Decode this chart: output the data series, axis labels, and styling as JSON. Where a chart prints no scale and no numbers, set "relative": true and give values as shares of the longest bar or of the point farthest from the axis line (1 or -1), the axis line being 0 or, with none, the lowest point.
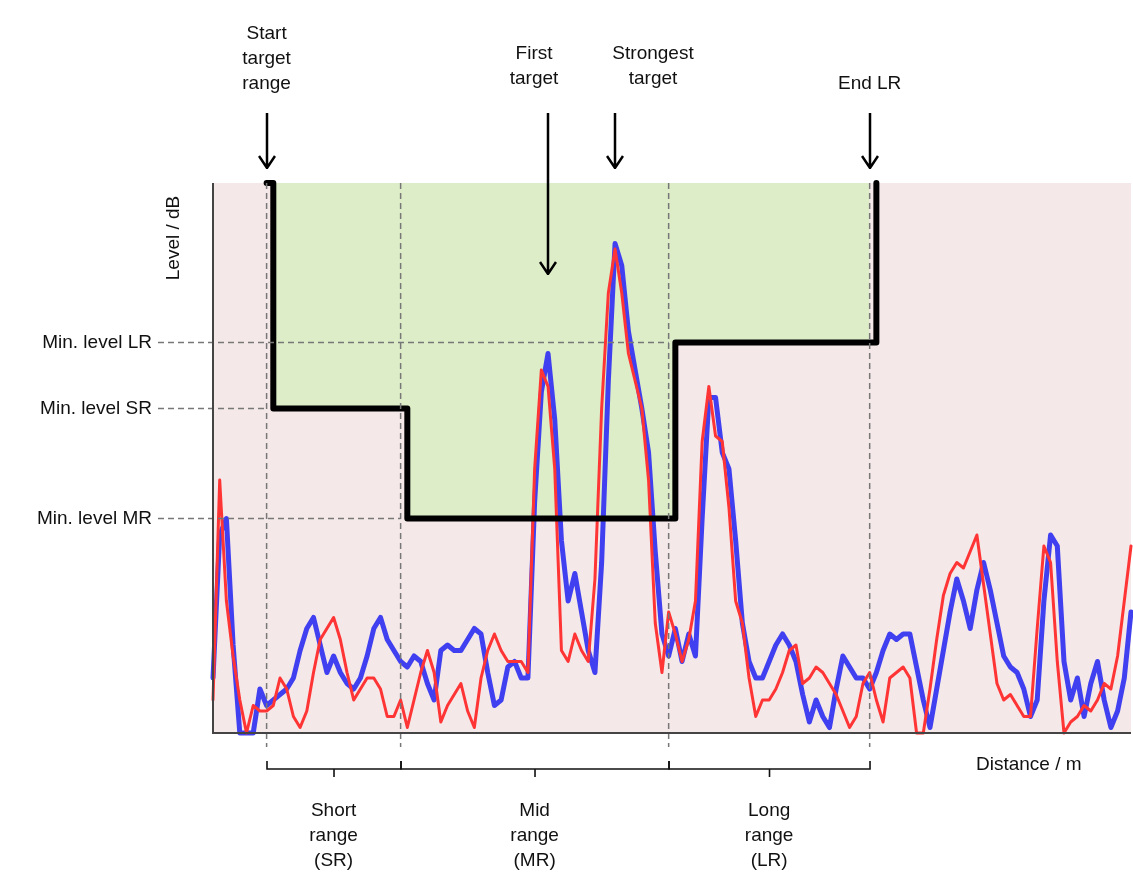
{
  "chart_data": {
    "type": "line",
    "relative": true,
    "xlabel": "Distance / m",
    "ylabel": "Level / dB",
    "categories": [
      null,
      null,
      null,
      null,
      null,
      null,
      null,
      null,
      null,
      null,
      null,
      null,
      null,
      null,
      null,
      null,
      null,
      null,
      null,
      null,
      null,
      null,
      null,
      null,
      null,
      null,
      null,
      null,
      null,
      null,
      null,
      null,
      null,
      null,
      null,
      null,
      null,
      null,
      null,
      null,
      null,
      null,
      null,
      null,
      null,
      null,
      null,
      null,
      null,
      null,
      null,
      null,
      null,
      null,
      null,
      null,
      null,
      null,
      null,
      null,
      null,
      null,
      null,
      null,
      null,
      null,
      null,
      null,
      null,
      null,
      null,
      null,
      null,
      null,
      null,
      null,
      null,
      null,
      null,
      null,
      null,
      null,
      null,
      null,
      null,
      null,
      null,
      null,
      null,
      null,
      null,
      null,
      null,
      null,
      null,
      null,
      null,
      null,
      null,
      null,
      null,
      null,
      null,
      null,
      null,
      null,
      null,
      null,
      null,
      null,
      null,
      null,
      null,
      null,
      null,
      null,
      null,
      null,
      null,
      null,
      null,
      null,
      null,
      null,
      null,
      null,
      null,
      null,
      null,
      null,
      null,
      null,
      null,
      null,
      null,
      null,
      null,
      null
    ],
    "series": [
      {
        "color": "#4040f0",
        "values": [
          0.1,
          0.36,
          0.39,
          0.16,
          0,
          0,
          0,
          0.08,
          0.05,
          0.06,
          0.07,
          0.08,
          0.1,
          0.15,
          0.19,
          0.21,
          0.16,
          0.11,
          0.14,
          0.11,
          0.09,
          0.08,
          0.1,
          0.14,
          0.19,
          0.21,
          0.17,
          0.15,
          0.13,
          0.12,
          0.14,
          0.13,
          0.09,
          0.06,
          0.15,
          0.16,
          0.15,
          0.15,
          0.17,
          0.19,
          0.18,
          0.11,
          0.05,
          0.06,
          0.12,
          0.13,
          0.1,
          0.1,
          0.42,
          0.62,
          0.69,
          0.57,
          0.35,
          0.24,
          0.29,
          0.22,
          0.15,
          0.11,
          0.31,
          0.64,
          0.89,
          0.85,
          0.73,
          0.66,
          0.59,
          0.51,
          0.33,
          0.18,
          0.14,
          0.19,
          0.13,
          0.18,
          0.14,
          0.39,
          0.61,
          0.61,
          0.51,
          0.48,
          0.35,
          0.2,
          0.13,
          0.1,
          0.1,
          0.13,
          0.16,
          0.18,
          0.16,
          0.13,
          0.07,
          0.02,
          0.06,
          0.03,
          0.01,
          0.08,
          0.14,
          0.12,
          0.1,
          0.1,
          0.08,
          0.11,
          0.15,
          0.18,
          0.17,
          0.18,
          0.18,
          0.12,
          0.06,
          0.01,
          0.08,
          0.15,
          0.22,
          0.28,
          0.24,
          0.19,
          0.26,
          0.31,
          0.26,
          0.2,
          0.14,
          0.12,
          0.11,
          0.08,
          0.03,
          0.06,
          0.24,
          0.36,
          0.34,
          0.13,
          0.06,
          0.1,
          0.03,
          0.09,
          0.13,
          0.06,
          0.01,
          0.04,
          0.1,
          0.22
        ]
      },
      {
        "color": "#ff3535",
        "values": [
          0.06,
          0.46,
          0.24,
          0.14,
          0.06,
          0,
          0.05,
          0.04,
          0.04,
          0.05,
          0.1,
          0.08,
          0.03,
          0.01,
          0.04,
          0.11,
          0.17,
          0.19,
          0.21,
          0.17,
          0.11,
          0.06,
          0.08,
          0.1,
          0.1,
          0.08,
          0.03,
          0.03,
          0.06,
          0.01,
          0.06,
          0.11,
          0.15,
          0.11,
          0.02,
          0.05,
          0.07,
          0.09,
          0.04,
          0.01,
          0.1,
          0.15,
          0.18,
          0.15,
          0.13,
          0.13,
          0.13,
          0.11,
          0.48,
          0.66,
          0.63,
          0.48,
          0.15,
          0.13,
          0.18,
          0.15,
          0.13,
          0.28,
          0.59,
          0.8,
          0.88,
          0.8,
          0.69,
          0.64,
          0.59,
          0.46,
          0.2,
          0.11,
          0.22,
          0.18,
          0.13,
          0.17,
          0.24,
          0.53,
          0.63,
          0.54,
          0.53,
          0.41,
          0.24,
          0.2,
          0.1,
          0.03,
          0.06,
          0.06,
          0.08,
          0.11,
          0.15,
          0.16,
          0.09,
          0.1,
          0.12,
          0.11,
          0.09,
          0.07,
          0.04,
          0.01,
          0.03,
          0.09,
          0.11,
          0.06,
          0.02,
          0.1,
          0.11,
          0.12,
          0.1,
          0,
          0,
          0.08,
          0.17,
          0.25,
          0.29,
          0.31,
          0.3,
          0.33,
          0.36,
          0.27,
          0.18,
          0.09,
          0.06,
          0.07,
          0.05,
          0.03,
          0.03,
          0.19,
          0.34,
          0.31,
          0.13,
          0,
          0.02,
          0.03,
          0.05,
          0.04,
          0.06,
          0.09,
          0.08,
          0.14,
          0.24,
          0.34
        ]
      },
      {
        "type": "step",
        "color": "#000000",
        "values": [
          null,
          null,
          null,
          null,
          null,
          null,
          null,
          null,
          1,
          0.59,
          0.59,
          0.59,
          0.59,
          0.59,
          0.59,
          0.59,
          0.59,
          0.59,
          0.59,
          0.59,
          0.59,
          0.59,
          0.59,
          0.59,
          0.59,
          0.59,
          0.59,
          0.59,
          0.59,
          0.39,
          0.39,
          0.39,
          0.39,
          0.39,
          0.39,
          0.39,
          0.39,
          0.39,
          0.39,
          0.39,
          0.39,
          0.39,
          0.39,
          0.39,
          0.39,
          0.39,
          0.39,
          0.39,
          0.39,
          0.39,
          0.39,
          0.39,
          0.39,
          0.39,
          0.39,
          0.39,
          0.39,
          0.39,
          0.39,
          0.39,
          0.39,
          0.39,
          0.39,
          0.39,
          0.39,
          0.39,
          0.39,
          0.39,
          0.39,
          0.71,
          0.71,
          0.71,
          0.71,
          0.71,
          0.71,
          0.71,
          0.71,
          0.71,
          0.71,
          0.71,
          0.71,
          0.71,
          0.71,
          0.71,
          0.71,
          0.71,
          0.71,
          0.71,
          0.71,
          0.71,
          0.71,
          0.71,
          0.71,
          0.71,
          0.71,
          0.71,
          0.71,
          0.71,
          0.71,
          1,
          null,
          null,
          null,
          null,
          null,
          null,
          null,
          null,
          null,
          null,
          null,
          null,
          null,
          null,
          null,
          null,
          null,
          null,
          null,
          null,
          null,
          null,
          null,
          null,
          null,
          null,
          null,
          null,
          null,
          null,
          null,
          null,
          null,
          null,
          null,
          null,
          null,
          null
        ]
      },
      {
        "type": "area",
        "color": "#dcedc8",
        "values": [
          null,
          null,
          null,
          null,
          null,
          null,
          null,
          null,
          1,
          1,
          1,
          1,
          1,
          1,
          1,
          1,
          1,
          1,
          1,
          1,
          1,
          1,
          1,
          1,
          1,
          1,
          1,
          1,
          1,
          1,
          1,
          1,
          1,
          1,
          1,
          1,
          1,
          1,
          1,
          1,
          1,
          1,
          1,
          1,
          1,
          1,
          1,
          1,
          1,
          1,
          1,
          1,
          1,
          1,
          1,
          1,
          1,
          1,
          1,
          1,
          1,
          1,
          1,
          1,
          1,
          1,
          1,
          1,
          1,
          1,
          1,
          1,
          1,
          1,
          1,
          1,
          1,
          1,
          1,
          1,
          1,
          1,
          1,
          1,
          1,
          1,
          1,
          1,
          1,
          1,
          1,
          1,
          1,
          1,
          1,
          1,
          1,
          1,
          1,
          null,
          null,
          null,
          null,
          null,
          null,
          null,
          null,
          null,
          null,
          null,
          null,
          null,
          null,
          null,
          null,
          null,
          null,
          null,
          null,
          null,
          null,
          null,
          null,
          null,
          null,
          null,
          null,
          null,
          null,
          null,
          null,
          null,
          null,
          null,
          null,
          null,
          null,
          null
        ]
      }
    ],
    "ref_lines": [
      {
        "axis": "y",
        "value": 0.71,
        "label": "Min. level LR"
      },
      {
        "axis": "y",
        "value": 0.59,
        "label": "Min. level SR"
      },
      {
        "axis": "y",
        "value": 0.39,
        "label": "Min. level MR"
      }
    ],
    "annotations": [
      "Start target range",
      "First target",
      "Strongest target",
      "End LR",
      "Short range (SR)",
      "Mid range (MR)",
      "Long range (LR)"
    ]
  }
}
